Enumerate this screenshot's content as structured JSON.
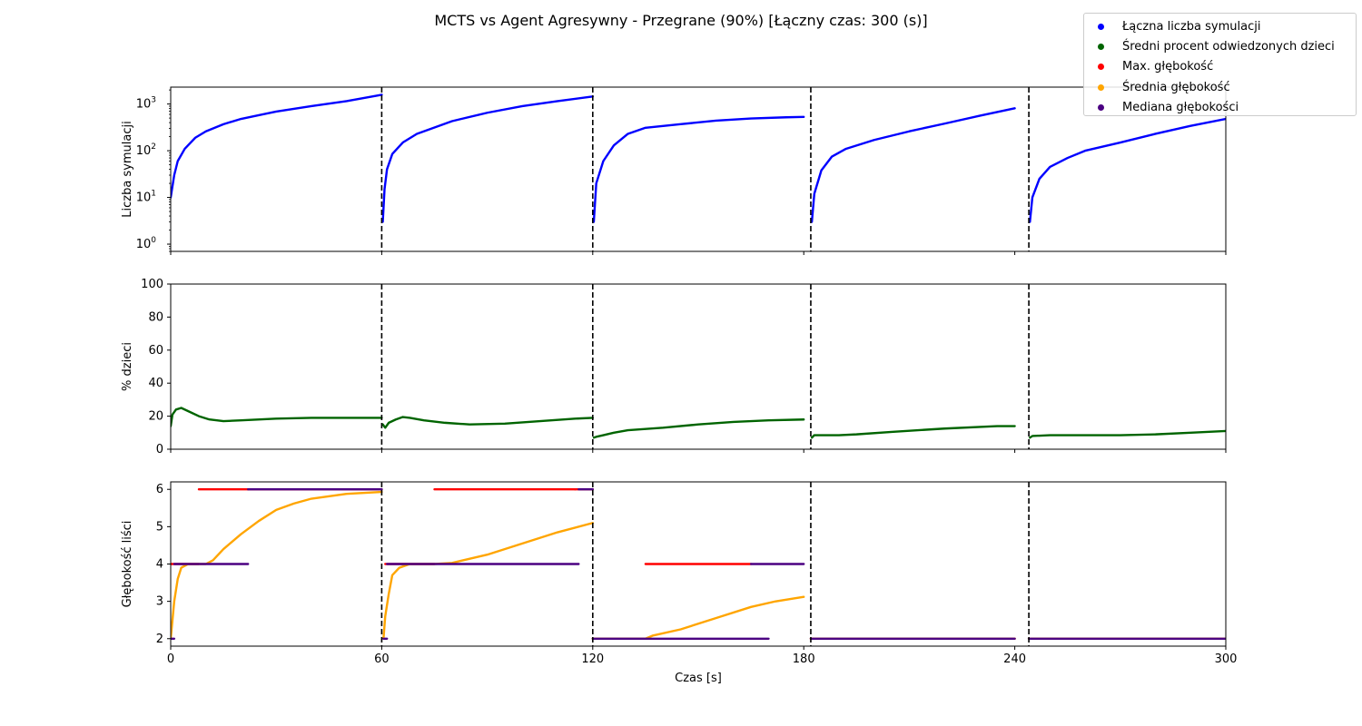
{
  "chart_data": {
    "type": "scatter",
    "title": "MCTS vs Agent Agresywny - Przegrane (90%) [Łączny czas: 300 (s)]",
    "xlabel": "Czas [s]",
    "xlim": [
      0,
      300
    ],
    "x_ticks": [
      "0",
      "60",
      "120",
      "180",
      "240",
      "300"
    ],
    "x_tick_values": [
      0,
      60,
      120,
      180,
      240,
      300
    ],
    "move_boundaries": [
      60,
      120,
      182,
      244
    ],
    "legend": {
      "placement": "top-right",
      "entries": [
        {
          "label": "Łączna liczba symulacji",
          "color": "#0000ff"
        },
        {
          "label": "Średni procent odwiedzonych dzieci",
          "color": "#006400"
        },
        {
          "label": "Max. głębokość",
          "color": "#ff0000"
        },
        {
          "label": "Średnia głębokość",
          "color": "#ffa500"
        },
        {
          "label": "Mediana głębokości",
          "color": "#4b0082"
        }
      ]
    },
    "panels": [
      {
        "ylabel": "Liczba symulacji",
        "scale": "log",
        "ylim": [
          0.7,
          2300
        ],
        "y_ticks": [
          {
            "v": 1,
            "label": "10^0"
          },
          {
            "v": 10,
            "label": "10^1"
          },
          {
            "v": 100,
            "label": "10^2"
          },
          {
            "v": 1000,
            "label": "10^3"
          }
        ],
        "series": [
          {
            "name": "Łączna liczba symulacji",
            "color": "#0000ff",
            "segments": [
              [
                [
                  0,
                  10
                ],
                [
                  1,
                  30
                ],
                [
                  2,
                  60
                ],
                [
                  4,
                  110
                ],
                [
                  7,
                  190
                ],
                [
                  10,
                  260
                ],
                [
                  15,
                  370
                ],
                [
                  20,
                  480
                ],
                [
                  30,
                  690
                ],
                [
                  40,
                  900
                ],
                [
                  50,
                  1150
                ],
                [
                  60,
                  1580
                ]
              ],
              [
                [
                  60.3,
                  3
                ],
                [
                  60.8,
                  15
                ],
                [
                  61.5,
                  40
                ],
                [
                  63,
                  85
                ],
                [
                  66,
                  150
                ],
                [
                  70,
                  230
                ],
                [
                  80,
                  430
                ],
                [
                  90,
                  650
                ],
                [
                  100,
                  900
                ],
                [
                  110,
                  1150
                ],
                [
                  120,
                  1450
                ]
              ],
              [
                [
                  120.3,
                  3
                ],
                [
                  121,
                  20
                ],
                [
                  123,
                  60
                ],
                [
                  126,
                  130
                ],
                [
                  130,
                  230
                ],
                [
                  135,
                  310
                ],
                [
                  145,
                  370
                ],
                [
                  155,
                  440
                ],
                [
                  165,
                  490
                ],
                [
                  175,
                  520
                ],
                [
                  180,
                  530
                ]
              ],
              [
                [
                  182.3,
                  3
                ],
                [
                  183,
                  12
                ],
                [
                  185,
                  38
                ],
                [
                  188,
                  75
                ],
                [
                  192,
                  110
                ],
                [
                  200,
                  170
                ],
                [
                  210,
                  260
                ],
                [
                  220,
                  380
                ],
                [
                  230,
                  560
                ],
                [
                  240,
                  810
                ]
              ],
              [
                [
                  244.3,
                  3
                ],
                [
                  245,
                  10
                ],
                [
                  247,
                  25
                ],
                [
                  250,
                  45
                ],
                [
                  255,
                  70
                ],
                [
                  260,
                  100
                ],
                [
                  270,
                  150
                ],
                [
                  280,
                  230
                ],
                [
                  290,
                  340
                ],
                [
                  300,
                  480
                ]
              ]
            ]
          }
        ]
      },
      {
        "ylabel": "% dzieci",
        "scale": "linear",
        "ylim": [
          0,
          100
        ],
        "y_ticks": [
          {
            "v": 0,
            "label": "0"
          },
          {
            "v": 20,
            "label": "20"
          },
          {
            "v": 40,
            "label": "40"
          },
          {
            "v": 60,
            "label": "60"
          },
          {
            "v": 80,
            "label": "80"
          },
          {
            "v": 100,
            "label": "100"
          }
        ],
        "series": [
          {
            "name": "Średni procent odwiedzonych dzieci",
            "color": "#006400",
            "segments": [
              [
                [
                  0,
                  14
                ],
                [
                  0.5,
                  21
                ],
                [
                  1.5,
                  24
                ],
                [
                  3,
                  25
                ],
                [
                  5,
                  23
                ],
                [
                  8,
                  20
                ],
                [
                  11,
                  18
                ],
                [
                  15,
                  17
                ],
                [
                  20,
                  17.5
                ],
                [
                  30,
                  18.5
                ],
                [
                  40,
                  19
                ],
                [
                  50,
                  19
                ],
                [
                  60,
                  19
                ]
              ],
              [
                [
                  60.3,
                  15
                ],
                [
                  61,
                  13
                ],
                [
                  62,
                  16
                ],
                [
                  64,
                  18
                ],
                [
                  66,
                  19.5
                ],
                [
                  68,
                  19
                ],
                [
                  72,
                  17.5
                ],
                [
                  78,
                  16
                ],
                [
                  85,
                  15
                ],
                [
                  95,
                  15.5
                ],
                [
                  105,
                  17
                ],
                [
                  115,
                  18.5
                ],
                [
                  120,
                  19
                ]
              ],
              [
                [
                  120.3,
                  7
                ],
                [
                  121,
                  7.5
                ],
                [
                  123,
                  8.5
                ],
                [
                  126,
                  10
                ],
                [
                  130,
                  11.5
                ],
                [
                  140,
                  13
                ],
                [
                  150,
                  15
                ],
                [
                  160,
                  16.5
                ],
                [
                  170,
                  17.5
                ],
                [
                  180,
                  18
                ]
              ],
              [
                [
                  182.3,
                  7
                ],
                [
                  183,
                  8.5
                ],
                [
                  190,
                  8.5
                ],
                [
                  195,
                  9
                ],
                [
                  205,
                  10.5
                ],
                [
                  220,
                  12.5
                ],
                [
                  235,
                  14
                ],
                [
                  240,
                  14
                ]
              ],
              [
                [
                  244.3,
                  7
                ],
                [
                  245,
                  8
                ],
                [
                  250,
                  8.5
                ],
                [
                  270,
                  8.5
                ],
                [
                  280,
                  9
                ],
                [
                  290,
                  10
                ],
                [
                  300,
                  11
                ]
              ]
            ]
          }
        ]
      },
      {
        "ylabel": "Głębokość liści",
        "scale": "linear",
        "ylim": [
          1.8,
          6.2
        ],
        "y_ticks": [
          {
            "v": 2,
            "label": "2"
          },
          {
            "v": 3,
            "label": "3"
          },
          {
            "v": 4,
            "label": "4"
          },
          {
            "v": 5,
            "label": "5"
          },
          {
            "v": 6,
            "label": "6"
          }
        ],
        "series": [
          {
            "name": "Max. głębokość",
            "color": "#ff0000",
            "segments": [
              [
                [
                  0,
                  4
                ],
                [
                  8,
                  4
                ]
              ],
              [
                [
                  8,
                  6
                ],
                [
                  22,
                  6
                ]
              ],
              [
                [
                  22,
                  6
                ],
                [
                  60,
                  6
                ]
              ],
              [
                [
                  61,
                  4
                ],
                [
                  75,
                  4
                ]
              ],
              [
                [
                  75,
                  6
                ],
                [
                  115,
                  6
                ]
              ],
              [
                [
                  115,
                  6
                ],
                [
                  120,
                  6
                ]
              ],
              [
                [
                  120,
                  2
                ],
                [
                  135,
                  2
                ]
              ],
              [
                [
                  135,
                  4
                ],
                [
                  165,
                  4
                ]
              ],
              [
                [
                  182,
                  2
                ],
                [
                  240,
                  2
                ]
              ],
              [
                [
                  244,
                  2
                ],
                [
                  300,
                  2
                ]
              ]
            ]
          },
          {
            "name": "Średnia głębokość",
            "color": "#ffa500",
            "segments": [
              [
                [
                  0,
                  2
                ],
                [
                  0.5,
                  2.5
                ],
                [
                  1,
                  3
                ],
                [
                  2,
                  3.6
                ],
                [
                  3,
                  3.9
                ],
                [
                  5,
                  4
                ],
                [
                  10,
                  4
                ],
                [
                  12,
                  4.1
                ],
                [
                  15,
                  4.4
                ],
                [
                  20,
                  4.8
                ],
                [
                  25,
                  5.15
                ],
                [
                  30,
                  5.45
                ],
                [
                  35,
                  5.62
                ],
                [
                  40,
                  5.75
                ],
                [
                  50,
                  5.88
                ],
                [
                  60,
                  5.93
                ]
              ],
              [
                [
                  60.5,
                  2
                ],
                [
                  61,
                  2.6
                ],
                [
                  62,
                  3.2
                ],
                [
                  63,
                  3.7
                ],
                [
                  65,
                  3.9
                ],
                [
                  68,
                  4
                ],
                [
                  75,
                  4
                ],
                [
                  80,
                  4.03
                ],
                [
                  90,
                  4.25
                ],
                [
                  100,
                  4.55
                ],
                [
                  110,
                  4.85
                ],
                [
                  120,
                  5.1
                ]
              ],
              [
                [
                  120,
                  2
                ],
                [
                  135,
                  2
                ],
                [
                  137,
                  2.08
                ],
                [
                  145,
                  2.25
                ],
                [
                  155,
                  2.55
                ],
                [
                  165,
                  2.85
                ],
                [
                  172,
                  3
                ],
                [
                  180,
                  3.12
                ]
              ],
              [
                [
                  182,
                  2
                ],
                [
                  240,
                  2
                ]
              ],
              [
                [
                  244,
                  2
                ],
                [
                  300,
                  2
                ]
              ]
            ]
          },
          {
            "name": "Mediana głębokości",
            "color": "#4b0082",
            "segments": [
              [
                [
                  0,
                  2
                ],
                [
                  1,
                  2
                ]
              ],
              [
                [
                  1,
                  4
                ],
                [
                  22,
                  4
                ]
              ],
              [
                [
                  22,
                  6
                ],
                [
                  60,
                  6
                ]
              ],
              [
                [
                  60.5,
                  2
                ],
                [
                  61.5,
                  2
                ]
              ],
              [
                [
                  61.5,
                  4
                ],
                [
                  116,
                  4
                ]
              ],
              [
                [
                  116,
                  6
                ],
                [
                  120,
                  6
                ]
              ],
              [
                [
                  120,
                  2
                ],
                [
                  170,
                  2
                ]
              ],
              [
                [
                  165,
                  4
                ],
                [
                  180,
                  4
                ]
              ],
              [
                [
                  182,
                  2
                ],
                [
                  240,
                  2
                ]
              ],
              [
                [
                  244,
                  2
                ],
                [
                  300,
                  2
                ]
              ]
            ]
          }
        ]
      }
    ]
  }
}
